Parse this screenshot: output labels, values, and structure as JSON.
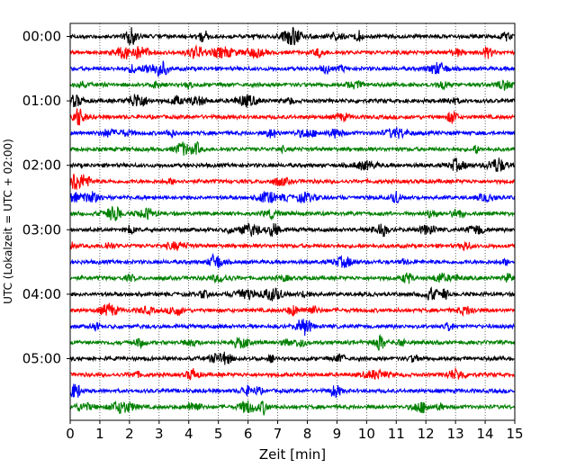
{
  "chart_data": {
    "type": "line",
    "subtype": "helicorder-seismogram",
    "xlabel": "Zeit  [min]",
    "ylabel": "UTC (Lokalzeit = UTC + 02:00)",
    "xlim": [
      0,
      15
    ],
    "x_ticks": [
      "0",
      "1",
      "2",
      "3",
      "4",
      "5",
      "6",
      "7",
      "8",
      "9",
      "10",
      "11",
      "12",
      "13",
      "14",
      "15"
    ],
    "y_tick_labels": [
      "00:00",
      "01:00",
      "02:00",
      "03:00",
      "04:00",
      "05:00"
    ],
    "trace_count": 24,
    "trace_interval_minutes": 15,
    "trace_colors": [
      "#000000",
      "#ff0000",
      "#0000ff",
      "#008000"
    ],
    "vertical_grid": "dotted",
    "legend": "none"
  }
}
